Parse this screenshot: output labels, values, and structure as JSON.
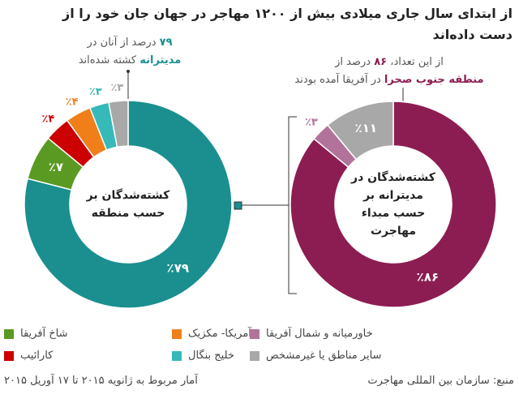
{
  "title": [
    "از ابتدای سال جاری میلادی بیش از ۱۲۰۰ مهاجر در جهان جان خود را از",
    "دست داده‌اند"
  ],
  "chart_data": [
    {
      "type": "donut",
      "center_label": [
        "کشته‌شدگان بر",
        "حسب منطقه"
      ],
      "values": [
        79,
        7,
        4,
        4,
        3,
        3
      ],
      "value_labels": [
        "٪۷۹",
        "٪۷",
        "٪۴",
        "٪۴",
        "٪۳",
        "٪۳"
      ],
      "colors": [
        "#1b8f8f",
        "#5a9a22",
        "#cc0000",
        "#f07f1a",
        "#36b9b9",
        "#a8a8a8"
      ],
      "annotation": [
        [
          {
            "text": "۷۹",
            "strong": true
          },
          {
            "text": "درصد از آنان در"
          }
        ],
        [
          {
            "text": "مدیترانه",
            "strong": true
          },
          {
            "text": "کشته شده‌اند"
          }
        ]
      ]
    },
    {
      "type": "donut",
      "center_label": [
        "کشته‌شدگان در",
        "مدیترانه بر",
        "حسب مبداء",
        "مهاجرت"
      ],
      "values": [
        86,
        3,
        11
      ],
      "value_labels": [
        "٪۸۶",
        "٪۳",
        "٪۱۱"
      ],
      "colors": [
        "#8c1d52",
        "#b2739a",
        "#a8a8a8"
      ],
      "annotation": [
        [
          {
            "text": "از این تعداد،"
          },
          {
            "text": "۸۶",
            "strong": true
          },
          {
            "text": "درصد از"
          }
        ],
        [
          {
            "text": "منطقه جنوب صحرا",
            "strong": true
          },
          {
            "text": "در آفریقا آمده بودند"
          }
        ]
      ]
    }
  ],
  "legend": [
    {
      "label": "شاخ آفریقا",
      "color": "#5a9a22"
    },
    {
      "label": "آمریکا- مکزیک",
      "color": "#f07f1a"
    },
    {
      "label": "خاورمیانه و شمال آفریقا",
      "color": "#b2739a"
    },
    {
      "label": "کارائیب",
      "color": "#cc0000"
    },
    {
      "label": "خلیج بنگال",
      "color": "#36b9b9"
    },
    {
      "label": "سایر مناطق یا غیرمشخص",
      "color": "#a8a8a8"
    }
  ],
  "footer": {
    "note": "آمار مربوط به ژانویه ۲۰۱۵ تا ۱۷ آوریل ۲۰۱۵",
    "source": "منبع: سازمان بین المللی مهاجرت"
  }
}
